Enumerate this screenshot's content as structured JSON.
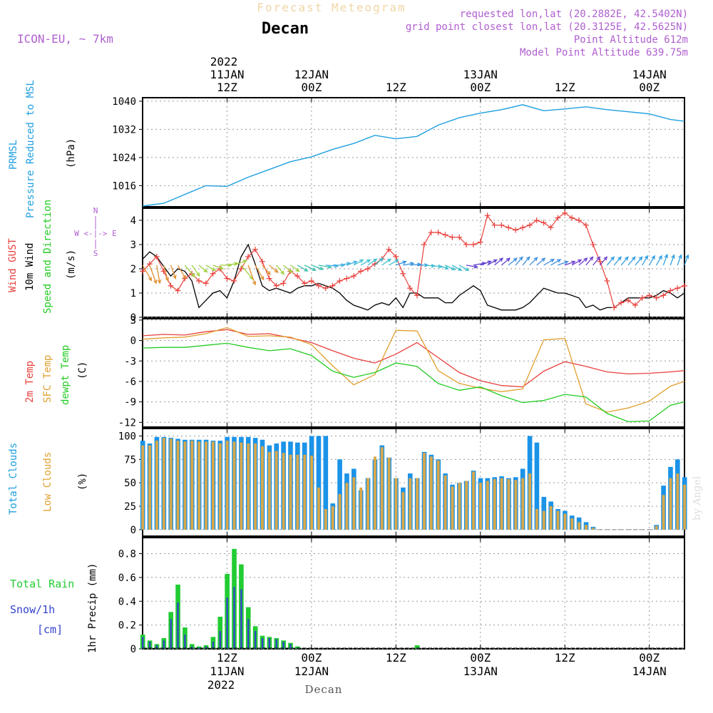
{
  "header": {
    "product": "Forecast Meteogram",
    "location": "Decan",
    "model": "ICON-EU, ~ 7km",
    "requested": "requested lon,lat (20.2882E, 42.5402N)",
    "gridpoint": "grid point closest lon,lat (20.3125E, 42.5625N)",
    "point_altitude": "Point Altitude 612m",
    "model_altitude": "Model Point Altitude 639.75m",
    "footer_location": "Decan",
    "watermark": "by Angel"
  },
  "time_axis": {
    "year_label": "2022",
    "top_ticks": [
      {
        "t": 12,
        "line1": "11JAN",
        "line2": "12Z"
      },
      {
        "t": 24,
        "line1": "12JAN",
        "line2": "00Z"
      },
      {
        "t": 36,
        "line1": "",
        "line2": "12Z"
      },
      {
        "t": 48,
        "line1": "13JAN",
        "line2": "00Z"
      },
      {
        "t": 60,
        "line1": "",
        "line2": "12Z"
      },
      {
        "t": 72,
        "line1": "14JAN",
        "line2": "00Z"
      }
    ],
    "bottom_ticks": [
      {
        "t": 12,
        "line1": "12Z",
        "line2": "11JAN"
      },
      {
        "t": 24,
        "line1": "00Z",
        "line2": "12JAN"
      },
      {
        "t": 36,
        "line1": "12Z",
        "line2": ""
      },
      {
        "t": 48,
        "line1": "00Z",
        "line2": "13JAN"
      },
      {
        "t": 60,
        "line1": "12Z",
        "line2": ""
      },
      {
        "t": 72,
        "line1": "00Z",
        "line2": "14JAN"
      }
    ]
  },
  "colors": {
    "pressure": "#1f9fe0",
    "gust": "#e8403c",
    "wind": "#000000",
    "temp": "#e8403c",
    "sfc": "#e0a030",
    "dewpt": "#22cc22",
    "total_clouds": "#1a93e8",
    "low_clouds": "#d9a84a",
    "rain": "#22cc33",
    "snow": "#3344cc",
    "purple": "#b060d0",
    "year": "#000000"
  },
  "panels": {
    "pressure": {
      "label1": "PRMSL",
      "label2": "Pressure Reduced to MSL",
      "unit": "(hPa)",
      "ticks": [
        "1040",
        "1032",
        "1024",
        "1016"
      ]
    },
    "wind": {
      "label1": "Wind GUST",
      "label2": "10m Wind",
      "label3": "Speed and Direction",
      "unit": "(m/s)",
      "ticks": [
        "4",
        "3",
        "2",
        "1",
        "0"
      ],
      "compass_n": "N",
      "compass_s": "S",
      "compass_we": "W <-|-> E"
    },
    "temp": {
      "label1": "2m Temp",
      "label2": "SFC Temp",
      "label3": "dewpt Temp",
      "unit": "(C)",
      "ticks": [
        "3",
        "0",
        "-3",
        "-6",
        "-9",
        "-12"
      ]
    },
    "clouds": {
      "label1": "Total Clouds",
      "label2": "Low Clouds",
      "unit": "(%)",
      "ticks": [
        "100",
        "75",
        "50",
        "25",
        "0"
      ]
    },
    "precip": {
      "label1": "Total Rain",
      "label2": "Snow/1h",
      "label3": "[cm]",
      "ylabel": "1hr Precip (mm)",
      "ticks": [
        "0.8",
        "0.6",
        "0.4",
        "0.2",
        "0"
      ]
    }
  },
  "chart_data": {
    "type": "meteogram",
    "time_start": "2022-01-11 00Z",
    "time_step_hours": 1,
    "pressure": {
      "name": "PRMSL",
      "ylim": [
        1010,
        1041
      ],
      "t": [
        0,
        3,
        6,
        9,
        12,
        15,
        18,
        21,
        24,
        27,
        30,
        33,
        36,
        39,
        42,
        45,
        48,
        51,
        54,
        57,
        60,
        63,
        66,
        69,
        72,
        75,
        77
      ],
      "values": [
        1010.2,
        1011.0,
        1013.5,
        1016.0,
        1015.8,
        1018.4,
        1020.6,
        1022.8,
        1024.2,
        1026.3,
        1028.0,
        1030.3,
        1029.3,
        1030.0,
        1033.2,
        1035.3,
        1036.6,
        1037.6,
        1039.0,
        1037.3,
        1037.8,
        1038.4,
        1037.6,
        1037.0,
        1036.4,
        1034.8,
        1034.3
      ]
    },
    "wind": {
      "ylim": [
        0,
        4.5
      ],
      "gust_t": [
        0,
        1,
        2,
        3,
        4,
        5,
        6,
        7,
        8,
        9,
        10,
        11,
        12,
        13,
        14,
        15,
        16,
        17,
        18,
        19,
        20,
        21,
        22,
        23,
        24,
        25,
        26,
        27,
        28,
        29,
        30,
        31,
        32,
        33,
        34,
        35,
        36,
        37,
        38,
        39,
        40,
        41,
        42,
        43,
        44,
        45,
        46,
        47,
        48,
        49,
        50,
        51,
        52,
        53,
        54,
        55,
        56,
        57,
        58,
        59,
        60,
        61,
        62,
        63,
        64,
        65,
        66,
        67,
        68,
        69,
        70,
        71,
        72,
        73,
        74,
        75,
        76,
        77
      ],
      "gust": [
        1.9,
        2.2,
        2.5,
        1.9,
        1.3,
        1.1,
        1.6,
        1.8,
        1.5,
        1.4,
        1.8,
        2.0,
        1.6,
        1.5,
        2.0,
        2.5,
        2.8,
        2.3,
        1.6,
        1.3,
        1.4,
        1.9,
        1.7,
        1.4,
        1.5,
        1.3,
        1.2,
        1.3,
        1.5,
        1.6,
        1.7,
        1.9,
        2.0,
        2.2,
        2.4,
        2.8,
        2.5,
        1.8,
        1.2,
        0.9,
        3.0,
        3.5,
        3.5,
        3.4,
        3.3,
        3.3,
        3.0,
        3.0,
        3.1,
        4.2,
        3.8,
        3.8,
        3.7,
        3.6,
        3.7,
        3.8,
        4.0,
        3.9,
        3.7,
        4.1,
        4.3,
        4.1,
        4.0,
        3.8,
        3.0,
        2.3,
        1.5,
        0.4,
        0.6,
        0.7,
        0.5,
        0.8,
        0.9,
        0.8,
        0.9,
        1.1,
        1.2,
        1.3
      ],
      "wind_t": [
        0,
        1,
        2,
        3,
        4,
        5,
        6,
        7,
        8,
        9,
        10,
        11,
        12,
        13,
        14,
        15,
        16,
        17,
        18,
        19,
        20,
        21,
        22,
        23,
        24,
        25,
        26,
        27,
        28,
        29,
        30,
        31,
        32,
        33,
        34,
        35,
        36,
        37,
        38,
        39,
        40,
        41,
        42,
        43,
        44,
        45,
        46,
        47,
        48,
        49,
        50,
        51,
        52,
        53,
        54,
        55,
        56,
        57,
        58,
        59,
        60,
        61,
        62,
        63,
        64,
        65,
        66,
        67,
        68,
        69,
        70,
        71,
        72,
        73,
        74,
        75,
        76,
        77
      ],
      "wind": [
        2.4,
        2.7,
        2.5,
        2.1,
        1.7,
        2.0,
        1.9,
        1.5,
        0.4,
        0.7,
        1.0,
        1.1,
        0.8,
        1.5,
        2.5,
        3.0,
        2.2,
        1.3,
        1.1,
        1.2,
        1.1,
        1.0,
        1.2,
        1.3,
        1.3,
        1.4,
        1.3,
        1.2,
        1.0,
        0.7,
        0.5,
        0.4,
        0.3,
        0.5,
        0.6,
        0.5,
        0.8,
        0.4,
        1.0,
        1.0,
        0.8,
        0.8,
        0.8,
        0.6,
        0.6,
        0.9,
        1.1,
        1.3,
        1.1,
        0.5,
        0.4,
        0.3,
        0.3,
        0.3,
        0.4,
        0.6,
        0.9,
        1.2,
        1.1,
        1.0,
        1.0,
        0.9,
        0.8,
        0.4,
        0.5,
        0.3,
        0.4,
        0.4,
        0.6,
        0.8,
        0.8,
        0.8,
        0.8,
        0.9,
        1.1,
        1.0,
        0.8,
        1.0
      ],
      "arrow_t": [
        0,
        1,
        2,
        3,
        4,
        5,
        6,
        7,
        8,
        9,
        10,
        11,
        12,
        13,
        14,
        15,
        16,
        17,
        18,
        19,
        20,
        21,
        22,
        23,
        24,
        25,
        26,
        27,
        28,
        29,
        30,
        31,
        32,
        33,
        34,
        35,
        36,
        37,
        38,
        39,
        40,
        41,
        42,
        43,
        44,
        45,
        46,
        47,
        48,
        49,
        50,
        51,
        52,
        53,
        54,
        55,
        56,
        57,
        58,
        59,
        60,
        61,
        62,
        63,
        64,
        65,
        66,
        67,
        68,
        69,
        70,
        71,
        72,
        73,
        74,
        75,
        76,
        77
      ],
      "arrow_dir_deg": [
        150,
        160,
        170,
        165,
        160,
        150,
        140,
        145,
        130,
        120,
        110,
        90,
        80,
        70,
        140,
        160,
        150,
        140,
        130,
        140,
        130,
        125,
        120,
        115,
        110,
        100,
        95,
        90,
        80,
        70,
        60,
        60,
        55,
        50,
        55,
        60,
        70,
        80,
        85,
        90,
        95,
        100,
        110,
        115,
        120,
        120,
        100,
        80,
        70,
        60,
        50,
        50,
        50,
        40,
        40,
        45,
        50,
        60,
        60,
        70,
        70,
        60,
        50,
        40,
        40,
        40,
        40,
        40,
        40,
        40,
        40,
        30,
        30,
        30,
        20,
        20,
        20,
        20
      ],
      "arrow_speed": [
        2.4,
        2.7,
        2.5,
        2.1,
        1.7,
        2.0,
        1.9,
        1.5,
        1.0,
        1.0,
        1.0,
        1.1,
        1.0,
        1.5,
        2.5,
        3.0,
        2.2,
        1.3,
        1.1,
        1.2,
        1.1,
        1.0,
        1.2,
        1.3,
        1.3,
        1.4,
        1.3,
        1.2,
        1.0,
        1.0,
        1.0,
        1.0,
        1.0,
        1.0,
        1.0,
        1.0,
        1.0,
        1.0,
        1.0,
        1.0,
        1.0,
        1.0,
        1.0,
        1.0,
        1.0,
        1.0,
        1.1,
        1.3,
        1.1,
        1.0,
        1.0,
        1.0,
        1.0,
        1.0,
        1.0,
        1.0,
        1.0,
        1.2,
        1.1,
        1.0,
        1.0,
        1.0,
        1.0,
        1.0,
        1.0,
        1.0,
        1.0,
        1.0,
        1.0,
        1.0,
        1.0,
        1.0,
        1.0,
        1.0,
        1.1,
        1.0,
        1.0,
        1.0
      ]
    },
    "temperature": {
      "ylim": [
        -12.7,
        3.2
      ],
      "t2m_t": [
        0,
        3,
        6,
        9,
        12,
        15,
        18,
        21,
        24,
        27,
        30,
        33,
        36,
        39,
        42,
        45,
        48,
        51,
        54,
        57,
        60,
        63,
        66,
        69,
        72,
        75,
        77
      ],
      "t2m": [
        0.7,
        0.9,
        0.8,
        1.3,
        1.6,
        0.9,
        1.0,
        0.4,
        -0.3,
        -1.5,
        -2.6,
        -3.3,
        -2.0,
        -0.3,
        -2.5,
        -4.7,
        -5.9,
        -6.6,
        -6.8,
        -4.5,
        -3.1,
        -3.8,
        -4.6,
        -4.9,
        -4.8,
        -4.6,
        -4.4
      ],
      "sfc_t": [
        0,
        3,
        6,
        9,
        12,
        15,
        18,
        21,
        24,
        27,
        30,
        33,
        36,
        39,
        42,
        45,
        48,
        51,
        54,
        57,
        60,
        63,
        66,
        69,
        72,
        75,
        77
      ],
      "sfc": [
        0.2,
        0.4,
        0.5,
        1.0,
        1.9,
        0.6,
        0.7,
        0.5,
        -0.6,
        -3.7,
        -6.5,
        -5.0,
        1.5,
        1.4,
        -4.4,
        -6.3,
        -7.0,
        -7.5,
        -7.1,
        0.1,
        0.3,
        -9.3,
        -10.5,
        -9.9,
        -8.9,
        -6.7,
        -6.0
      ],
      "dew_t": [
        0,
        3,
        6,
        9,
        12,
        15,
        18,
        21,
        24,
        27,
        30,
        33,
        36,
        39,
        42,
        45,
        48,
        51,
        54,
        57,
        60,
        63,
        66,
        69,
        72,
        75,
        77
      ],
      "dew": [
        -1.1,
        -1.0,
        -1.0,
        -0.7,
        -0.4,
        -1.0,
        -1.5,
        -1.2,
        -2.2,
        -4.5,
        -5.4,
        -4.7,
        -3.3,
        -3.8,
        -6.3,
        -7.3,
        -6.8,
        -8.1,
        -9.1,
        -8.8,
        -7.9,
        -8.3,
        -10.7,
        -11.9,
        -11.8,
        -9.5,
        -9.0
      ]
    },
    "clouds": {
      "ylim": [
        0,
        100
      ],
      "t": [
        0,
        1,
        2,
        3,
        4,
        5,
        6,
        7,
        8,
        9,
        10,
        11,
        12,
        13,
        14,
        15,
        16,
        17,
        18,
        19,
        20,
        21,
        22,
        23,
        24,
        25,
        26,
        27,
        28,
        29,
        30,
        31,
        32,
        33,
        34,
        35,
        36,
        37,
        38,
        39,
        40,
        41,
        42,
        43,
        44,
        45,
        46,
        47,
        48,
        49,
        50,
        51,
        52,
        53,
        54,
        55,
        56,
        57,
        58,
        59,
        60,
        61,
        62,
        63,
        64,
        65,
        66,
        67,
        68,
        69,
        70,
        71,
        72,
        73,
        74,
        75,
        76,
        77
      ],
      "total": [
        95,
        92,
        99,
        99,
        98,
        97,
        96,
        96,
        96,
        96,
        95,
        95,
        99,
        99,
        99,
        99,
        98,
        96,
        90,
        92,
        94,
        94,
        93,
        93,
        100,
        100,
        100,
        28,
        75,
        60,
        65,
        42,
        55,
        75,
        90,
        77,
        55,
        45,
        60,
        55,
        83,
        80,
        75,
        60,
        48,
        50,
        52,
        63,
        55,
        55,
        56,
        57,
        55,
        56,
        65,
        100,
        93,
        35,
        30,
        22,
        20,
        15,
        13,
        8,
        3,
        0,
        0,
        0,
        0,
        0,
        0,
        0,
        0,
        5,
        47,
        67,
        75,
        56
      ],
      "low": [
        90,
        90,
        95,
        98,
        97,
        95,
        94,
        95,
        94,
        94,
        94,
        92,
        95,
        94,
        93,
        92,
        92,
        89,
        83,
        84,
        82,
        80,
        80,
        80,
        79,
        45,
        22,
        25,
        38,
        50,
        56,
        45,
        55,
        78,
        88,
        77,
        55,
        40,
        55,
        55,
        82,
        78,
        74,
        58,
        46,
        50,
        52,
        62,
        50,
        52,
        54,
        55,
        54,
        53,
        55,
        60,
        22,
        20,
        25,
        20,
        17,
        12,
        8,
        5,
        2,
        0,
        0,
        0,
        0,
        0,
        0,
        0,
        0,
        4,
        37,
        55,
        60,
        48
      ]
    },
    "precip": {
      "ylim": [
        0,
        0.9
      ],
      "t": [
        0,
        1,
        2,
        3,
        4,
        5,
        6,
        7,
        8,
        9,
        10,
        11,
        12,
        13,
        14,
        15,
        16,
        17,
        18,
        19,
        20,
        21,
        22,
        23,
        24,
        25,
        26,
        27,
        28,
        29,
        30,
        31,
        32,
        33,
        34,
        35,
        36,
        37,
        38,
        39,
        40,
        41,
        42,
        43,
        44,
        45,
        46,
        47,
        48,
        49,
        50,
        51,
        52,
        53,
        54,
        55,
        56,
        57,
        58,
        59,
        60,
        61,
        62,
        63,
        64,
        65,
        66,
        67,
        68,
        69,
        70,
        71,
        72,
        73,
        74,
        75,
        76,
        77
      ],
      "rain": [
        0.12,
        0.07,
        0.04,
        0.09,
        0.31,
        0.54,
        0.18,
        0.04,
        0.02,
        0.03,
        0.1,
        0.27,
        0.63,
        0.84,
        0.71,
        0.35,
        0.19,
        0.11,
        0.1,
        0.09,
        0.07,
        0.05,
        0.02,
        0,
        0,
        0,
        0,
        0,
        0,
        0,
        0,
        0,
        0,
        0,
        0,
        0,
        0,
        0,
        0,
        0.03,
        0,
        0,
        0,
        0,
        0,
        0,
        0,
        0,
        0,
        0,
        0,
        0,
        0,
        0,
        0,
        0,
        0,
        0,
        0,
        0,
        0,
        0,
        0,
        0,
        0,
        0,
        0,
        0,
        0,
        0,
        0,
        0,
        0,
        0,
        0,
        0,
        0,
        0
      ],
      "snow": [
        0.1,
        0.06,
        0.03,
        0.07,
        0.25,
        0.39,
        0.12,
        0.02,
        0.01,
        0.02,
        0.06,
        0.15,
        0.43,
        0.52,
        0.5,
        0.25,
        0.15,
        0.09,
        0.09,
        0.08,
        0.06,
        0.04,
        0.01,
        0,
        0,
        0,
        0,
        0,
        0,
        0,
        0,
        0,
        0,
        0,
        0,
        0,
        0,
        0,
        0,
        0.01,
        0,
        0,
        0,
        0,
        0,
        0,
        0,
        0,
        0,
        0,
        0,
        0,
        0,
        0,
        0,
        0,
        0,
        0,
        0,
        0,
        0,
        0,
        0,
        0,
        0,
        0,
        0,
        0,
        0,
        0,
        0,
        0,
        0,
        0,
        0,
        0,
        0,
        0
      ]
    }
  }
}
